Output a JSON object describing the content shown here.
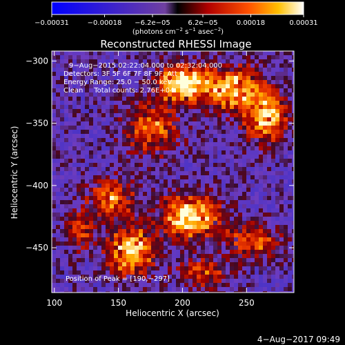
{
  "chart_data": {
    "type": "heatmap",
    "title": "Reconstructed RHESSI Image",
    "xlabel": "Heliocentric X (arcsec)",
    "ylabel": "Heliocentric Y (arcsec)",
    "xlim": [
      98,
      287
    ],
    "ylim": [
      -486,
      -292
    ],
    "x_ticks": [
      100,
      150,
      200,
      250
    ],
    "y_ticks": [
      -300,
      -350,
      -400,
      -450
    ],
    "x_tick_labels": [
      "100",
      "150",
      "200",
      "250"
    ],
    "y_tick_labels": [
      "−300",
      "−350",
      "−400",
      "−450"
    ],
    "colorbar": {
      "min": -0.00031,
      "max": 0.00031,
      "ticks": [
        -0.00031,
        -0.00018,
        -6.2e-05,
        6.2e-05,
        0.00018,
        0.00031
      ],
      "tick_labels": [
        "−0.00031",
        "−0.00018",
        "−6.2e−05",
        "6.2e−05",
        "0.00018",
        "0.00031"
      ],
      "units_parts": [
        "(photons cm",
        "−2",
        " s",
        "−1",
        " asec",
        "−2",
        ")"
      ]
    },
    "annotations": [
      "9−Aug−2015 02:22:04.000 to 02:32:04.000",
      "Detectors: 3F 5F 6F 7F 8F 9F, Att 0",
      "Energy Range: 25.0 − 50.0 keV",
      "Clean     Total counts: 2.76E+04"
    ],
    "peak_label": "Position of Peak = [190,−297]",
    "timestamp": "4−Aug−2017 09:49",
    "sources": [
      {
        "x": 200,
        "y": -318,
        "amp": 1.0,
        "sx": 14,
        "sy": 10
      },
      {
        "x": 240,
        "y": -322,
        "amp": 0.8,
        "sx": 16,
        "sy": 12
      },
      {
        "x": 265,
        "y": -345,
        "amp": 0.75,
        "sx": 12,
        "sy": 14
      },
      {
        "x": 175,
        "y": -355,
        "amp": 0.6,
        "sx": 14,
        "sy": 14
      },
      {
        "x": 145,
        "y": -410,
        "amp": 0.65,
        "sx": 12,
        "sy": 10
      },
      {
        "x": 205,
        "y": -425,
        "amp": 0.95,
        "sx": 16,
        "sy": 12
      },
      {
        "x": 160,
        "y": -452,
        "amp": 0.9,
        "sx": 12,
        "sy": 14
      },
      {
        "x": 255,
        "y": -445,
        "amp": 0.55,
        "sx": 14,
        "sy": 10
      },
      {
        "x": 215,
        "y": -470,
        "amp": 0.5,
        "sx": 14,
        "sy": 8
      },
      {
        "x": 120,
        "y": -435,
        "amp": 0.45,
        "sx": 8,
        "sy": 12
      }
    ]
  }
}
